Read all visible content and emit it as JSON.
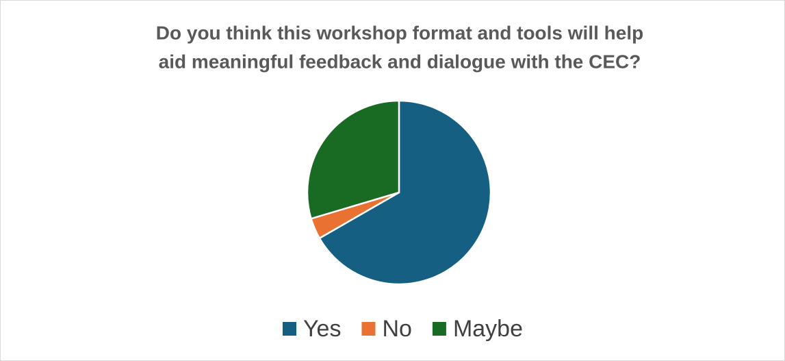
{
  "chart_data": {
    "type": "pie",
    "title": [
      "Do you think this workshop format and tools will help",
      "aid meaningful feedback and dialogue with the CEC?"
    ],
    "categories": [
      "Yes",
      "No",
      "Maybe"
    ],
    "values": [
      66.7,
      3.7,
      29.6
    ],
    "colors": [
      "#156082",
      "#e97132",
      "#196b24"
    ],
    "legend": "bottom"
  }
}
